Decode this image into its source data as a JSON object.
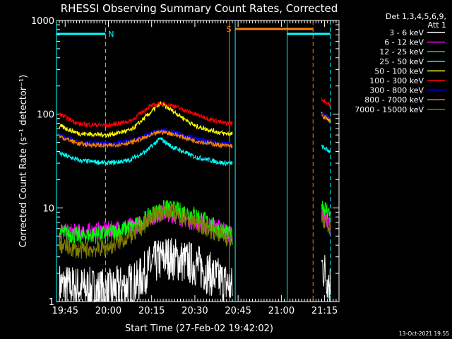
{
  "chart_data": {
    "type": "line",
    "title": "RHESSI Observing Summary Count Rates, Corrected",
    "xlabel": "Start Time (27-Feb-02 19:42:02)",
    "ylabel": "Corrected Count Rate (s⁻¹ detector⁻¹)",
    "yscale": "log",
    "ylim": [
      1,
      1000
    ],
    "xlim": [
      "19:42",
      "21:20"
    ],
    "x_ticks": [
      "19:45",
      "20:00",
      "20:15",
      "20:30",
      "20:45",
      "21:00",
      "21:15"
    ],
    "y_ticks": [
      "1",
      "10",
      "100",
      "1000"
    ],
    "legend_header": [
      "Det 1,3,4,5,6,9,",
      "Att 1"
    ],
    "legend_position": "top-right",
    "footer": "13-Oct-2021 19:55",
    "flags": [
      {
        "label": "N",
        "start": "19:42",
        "end": "19:59",
        "color": "#00ffff"
      },
      {
        "label": "S",
        "start": "20:44",
        "end": "21:11",
        "color": "#ff8000"
      }
    ],
    "vertical_markers": [
      {
        "time": "19:42",
        "style": "solid",
        "color": "#00ffff"
      },
      {
        "time": "19:59",
        "style": "dashed",
        "color": "#00ffff"
      },
      {
        "time": "20:42",
        "style": "solid",
        "color": "#ff8000"
      },
      {
        "time": "20:44",
        "style": "solid",
        "color": "#00ffff"
      },
      {
        "time": "21:02",
        "style": "solid",
        "color": "#00ffff"
      },
      {
        "time": "21:11",
        "style": "dashed",
        "color": "#ff8000"
      },
      {
        "time": "21:17",
        "style": "dashed",
        "color": "#00ffff"
      }
    ],
    "data_gap": [
      "20:43",
      "21:14"
    ],
    "series": [
      {
        "name": "3 - 6 keV",
        "color": "#ffffff",
        "times": [
          "19:43",
          "19:50",
          "20:00",
          "20:10",
          "20:15",
          "20:20",
          "20:30",
          "20:40",
          "20:43",
          "21:14",
          "21:17"
        ],
        "values": [
          1.5,
          1.4,
          1.3,
          1.6,
          2.5,
          3,
          2.5,
          1.6,
          1.4,
          2.5,
          1.5
        ]
      },
      {
        "name": "6 - 12 keV",
        "color": "#ff00ff",
        "times": [
          "19:43",
          "19:50",
          "20:00",
          "20:10",
          "20:15",
          "20:20",
          "20:30",
          "20:40",
          "20:43",
          "21:14",
          "21:17"
        ],
        "values": [
          5.5,
          5.5,
          5.8,
          6.5,
          8,
          9,
          7,
          6,
          5,
          9,
          6.5
        ]
      },
      {
        "name": "12 - 25 keV",
        "color": "#00ff00",
        "times": [
          "19:43",
          "19:50",
          "20:00",
          "20:10",
          "20:15",
          "20:20",
          "20:30",
          "20:40",
          "20:43",
          "21:14",
          "21:17"
        ],
        "values": [
          5.5,
          5,
          5.3,
          6.5,
          8.5,
          10,
          8.5,
          5.5,
          5,
          11,
          8.5
        ]
      },
      {
        "name": "25 - 50 keV",
        "color": "#00ffff",
        "times": [
          "19:43",
          "19:50",
          "20:00",
          "20:07",
          "20:13",
          "20:18",
          "20:22",
          "20:30",
          "20:40",
          "20:43",
          "21:14",
          "21:17"
        ],
        "values": [
          38,
          32,
          30,
          32,
          40,
          55,
          45,
          35,
          30,
          30,
          45,
          40
        ]
      },
      {
        "name": "50 - 100 keV",
        "color": "#ffff00",
        "times": [
          "19:43",
          "19:50",
          "20:00",
          "20:08",
          "20:14",
          "20:18",
          "20:22",
          "20:30",
          "20:40",
          "20:43",
          "21:14",
          "21:17"
        ],
        "values": [
          75,
          62,
          60,
          68,
          100,
          130,
          110,
          75,
          62,
          62,
          100,
          85
        ]
      },
      {
        "name": "100 - 300 keV",
        "color": "#ff0000",
        "times": [
          "19:43",
          "19:50",
          "20:00",
          "20:08",
          "20:14",
          "20:18",
          "20:22",
          "20:30",
          "20:40",
          "20:43",
          "21:14",
          "21:17"
        ],
        "values": [
          100,
          78,
          76,
          85,
          120,
          130,
          125,
          100,
          80,
          80,
          145,
          125
        ]
      },
      {
        "name": "300 - 800 keV",
        "color": "#0000ff",
        "times": [
          "19:43",
          "19:50",
          "20:00",
          "20:08",
          "20:14",
          "20:18",
          "20:22",
          "20:30",
          "20:40",
          "20:43",
          "21:14",
          "21:17"
        ],
        "values": [
          60,
          50,
          48,
          52,
          60,
          68,
          65,
          55,
          48,
          48,
          100,
          90
        ]
      },
      {
        "name": "800 - 7000 keV",
        "color": "#ff8000",
        "times": [
          "19:43",
          "19:50",
          "20:00",
          "20:08",
          "20:14",
          "20:18",
          "20:22",
          "20:30",
          "20:40",
          "20:43",
          "21:14",
          "21:17"
        ],
        "values": [
          58,
          48,
          46,
          50,
          58,
          65,
          62,
          52,
          46,
          46,
          95,
          85
        ]
      },
      {
        "name": "7000 - 15000 keV",
        "color": "#808000",
        "times": [
          "19:43",
          "19:50",
          "20:00",
          "20:10",
          "20:15",
          "20:20",
          "20:30",
          "20:40",
          "20:43",
          "21:14",
          "21:17"
        ],
        "values": [
          4,
          3.5,
          3.8,
          5.5,
          8,
          9.5,
          7,
          5,
          4.5,
          8,
          6
        ]
      }
    ]
  }
}
